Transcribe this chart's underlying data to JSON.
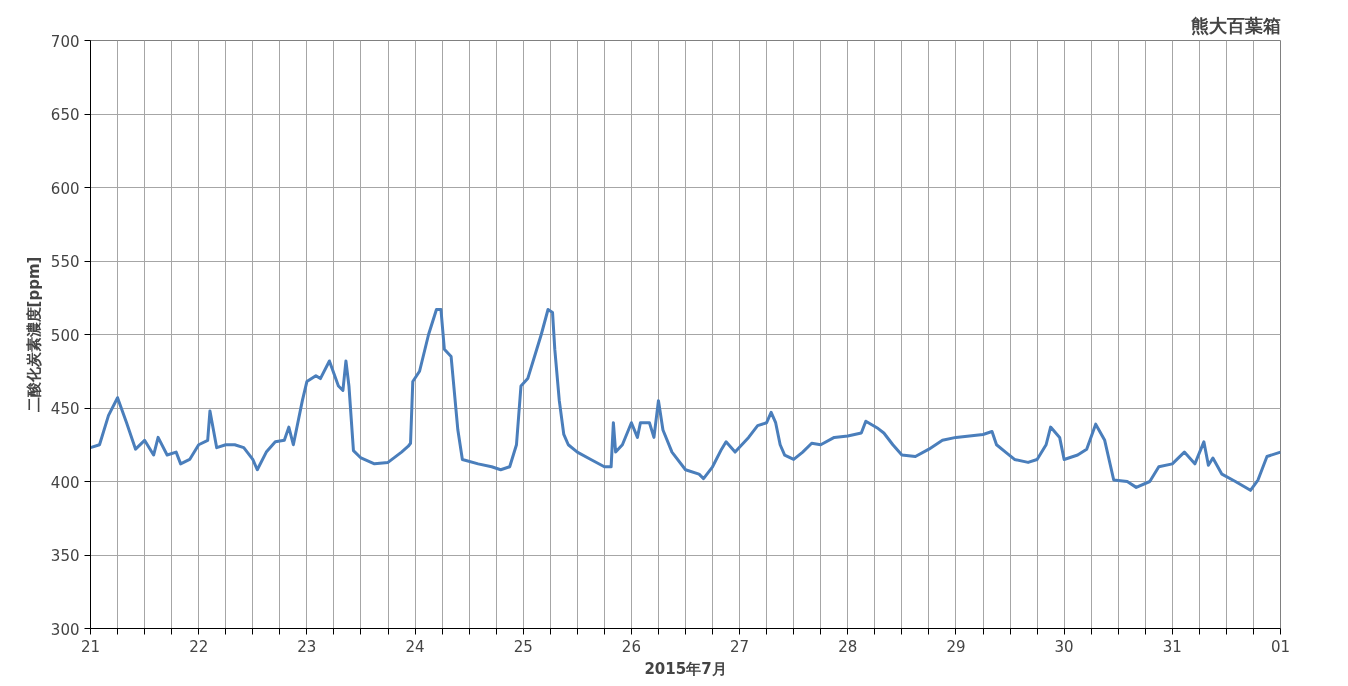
{
  "chart_data": {
    "type": "line",
    "title": "熊大百葉箱",
    "xlabel": "2015年7月",
    "ylabel": "二酸化炭素濃度[ppm]",
    "series": [
      {
        "color": "#4a7ebb",
        "x": [
          "2015-07-21T00:00",
          "2015-07-21T02:00",
          "2015-07-21T04:00",
          "2015-07-21T06:00",
          "2015-07-21T08:00",
          "2015-07-21T10:00",
          "2015-07-21T12:00",
          "2015-07-21T14:00",
          "2015-07-21T15:00",
          "2015-07-21T17:00",
          "2015-07-21T19:00",
          "2015-07-21T20:00",
          "2015-07-21T22:00",
          "2015-07-22T00:00",
          "2015-07-22T02:00",
          "2015-07-22T02:30",
          "2015-07-22T04:00",
          "2015-07-22T06:00",
          "2015-07-22T08:00",
          "2015-07-22T10:00",
          "2015-07-22T12:00",
          "2015-07-22T13:00",
          "2015-07-22T15:00",
          "2015-07-22T17:00",
          "2015-07-22T19:00",
          "2015-07-22T20:00",
          "2015-07-22T21:00",
          "2015-07-22T23:00",
          "2015-07-23T00:00",
          "2015-07-23T02:00",
          "2015-07-23T03:00",
          "2015-07-23T05:00",
          "2015-07-23T07:00",
          "2015-07-23T08:00",
          "2015-07-23T08:40",
          "2015-07-23T09:20",
          "2015-07-23T10:20",
          "2015-07-23T12:00",
          "2015-07-23T15:00",
          "2015-07-23T18:00",
          "2015-07-23T21:00",
          "2015-07-23T22:30",
          "2015-07-23T23:00",
          "2015-07-23T23:30",
          "2015-07-24T01:00",
          "2015-07-24T03:00",
          "2015-07-24T04:45",
          "2015-07-24T05:45",
          "2015-07-24T06:30",
          "2015-07-24T08:00",
          "2015-07-24T09:30",
          "2015-07-24T10:30",
          "2015-07-24T14:00",
          "2015-07-24T17:00",
          "2015-07-24T19:00",
          "2015-07-24T21:00",
          "2015-07-24T22:30",
          "2015-07-24T23:30",
          "2015-07-25T01:00",
          "2015-07-25T03:00",
          "2015-07-25T04:00",
          "2015-07-25T05:30",
          "2015-07-25T06:30",
          "2015-07-25T07:00",
          "2015-07-25T08:00",
          "2015-07-25T09:00",
          "2015-07-25T10:00",
          "2015-07-25T12:00",
          "2015-07-25T15:00",
          "2015-07-25T18:00",
          "2015-07-25T19:30",
          "2015-07-25T20:00",
          "2015-07-25T20:30",
          "2015-07-25T22:00",
          "2015-07-26T00:00",
          "2015-07-26T01:20",
          "2015-07-26T02:00",
          "2015-07-26T04:00",
          "2015-07-26T05:00",
          "2015-07-26T06:00",
          "2015-07-26T07:00",
          "2015-07-26T09:00",
          "2015-07-26T12:00",
          "2015-07-26T15:00",
          "2015-07-26T16:00",
          "2015-07-26T18:00",
          "2015-07-26T20:00",
          "2015-07-26T21:00",
          "2015-07-26T23:00",
          "2015-07-27T02:00",
          "2015-07-27T04:00",
          "2015-07-27T06:00",
          "2015-07-27T07:00",
          "2015-07-27T08:00",
          "2015-07-27T09:00",
          "2015-07-27T10:00",
          "2015-07-27T12:00",
          "2015-07-27T14:00",
          "2015-07-27T16:00",
          "2015-07-27T18:00",
          "2015-07-27T21:00",
          "2015-07-28T00:00",
          "2015-07-28T03:00",
          "2015-07-28T04:00",
          "2015-07-28T06:45",
          "2015-07-28T08:00",
          "2015-07-28T10:00",
          "2015-07-28T12:00",
          "2015-07-28T15:00",
          "2015-07-28T18:00",
          "2015-07-28T21:00",
          "2015-07-29T00:00",
          "2015-07-29T03:00",
          "2015-07-29T06:00",
          "2015-07-29T08:00",
          "2015-07-29T09:00",
          "2015-07-29T11:00",
          "2015-07-29T13:00",
          "2015-07-29T16:00",
          "2015-07-29T18:00",
          "2015-07-29T20:00",
          "2015-07-29T21:00",
          "2015-07-29T23:00",
          "2015-07-30T00:00",
          "2015-07-30T03:00",
          "2015-07-30T05:00",
          "2015-07-30T07:00",
          "2015-07-30T09:00",
          "2015-07-30T11:00",
          "2015-07-30T14:00",
          "2015-07-30T16:00",
          "2015-07-30T19:00",
          "2015-07-30T21:00",
          "2015-07-31T00:00",
          "2015-07-31T02:40",
          "2015-07-31T05:00",
          "2015-07-31T07:00",
          "2015-07-31T08:00",
          "2015-07-31T09:00",
          "2015-07-31T11:00",
          "2015-07-31T14:00",
          "2015-07-31T17:20",
          "2015-07-31T19:00",
          "2015-07-31T21:00",
          "2015-08-01T00:00"
        ],
        "values": [
          423,
          425,
          445,
          457,
          440,
          422,
          428,
          418,
          430,
          418,
          420,
          412,
          415,
          425,
          428,
          448,
          423,
          425,
          425,
          423,
          415,
          408,
          420,
          427,
          428,
          437,
          425,
          455,
          468,
          472,
          470,
          482,
          465,
          462,
          482,
          465,
          421,
          416,
          412,
          413,
          420,
          424,
          426,
          468,
          475,
          500,
          517,
          517,
          490,
          485,
          435,
          415,
          412,
          410,
          408,
          410,
          425,
          465,
          470,
          490,
          500,
          517,
          515,
          490,
          455,
          432,
          425,
          420,
          415,
          410,
          410,
          440,
          420,
          425,
          440,
          430,
          440,
          440,
          430,
          455,
          435,
          420,
          408,
          405,
          402,
          410,
          422,
          427,
          420,
          430,
          438,
          440,
          447,
          440,
          425,
          418,
          415,
          420,
          426,
          425,
          430,
          431,
          433,
          441,
          436,
          433,
          425,
          418,
          417,
          422,
          428,
          430,
          431,
          432,
          434,
          425,
          420,
          415,
          413,
          415,
          425,
          437,
          430,
          415,
          418,
          422,
          439,
          428,
          401,
          400,
          396,
          400,
          410,
          412,
          420,
          412,
          427,
          411,
          416,
          405,
          400,
          394,
          401,
          417,
          420
        ]
      }
    ],
    "xlim": [
      "2015-07-21",
      "2015-08-01"
    ],
    "xticks": [
      {
        "value": "2015-07-21",
        "label": "21"
      },
      {
        "value": "2015-07-21T06:00",
        "label": null
      },
      {
        "value": "2015-07-21T12:00",
        "label": null
      },
      {
        "value": "2015-07-21T18:00",
        "label": null
      },
      {
        "value": "2015-07-22",
        "label": "22"
      },
      {
        "value": "2015-07-22T06:00",
        "label": null
      },
      {
        "value": "2015-07-22T12:00",
        "label": null
      },
      {
        "value": "2015-07-22T18:00",
        "label": null
      },
      {
        "value": "2015-07-23",
        "label": "23"
      },
      {
        "value": "2015-07-23T06:00",
        "label": null
      },
      {
        "value": "2015-07-23T12:00",
        "label": null
      },
      {
        "value": "2015-07-23T18:00",
        "label": null
      },
      {
        "value": "2015-07-24",
        "label": "24"
      },
      {
        "value": "2015-07-24T06:00",
        "label": null
      },
      {
        "value": "2015-07-24T12:00",
        "label": null
      },
      {
        "value": "2015-07-24T18:00",
        "label": null
      },
      {
        "value": "2015-07-25",
        "label": "25"
      },
      {
        "value": "2015-07-25T06:00",
        "label": null
      },
      {
        "value": "2015-07-25T12:00",
        "label": null
      },
      {
        "value": "2015-07-25T18:00",
        "label": null
      },
      {
        "value": "2015-07-26",
        "label": "26"
      },
      {
        "value": "2015-07-26T06:00",
        "label": null
      },
      {
        "value": "2015-07-26T12:00",
        "label": null
      },
      {
        "value": "2015-07-26T18:00",
        "label": null
      },
      {
        "value": "2015-07-27",
        "label": "27"
      },
      {
        "value": "2015-07-27T06:00",
        "label": null
      },
      {
        "value": "2015-07-27T12:00",
        "label": null
      },
      {
        "value": "2015-07-27T18:00",
        "label": null
      },
      {
        "value": "2015-07-28",
        "label": "28"
      },
      {
        "value": "2015-07-28T06:00",
        "label": null
      },
      {
        "value": "2015-07-28T12:00",
        "label": null
      },
      {
        "value": "2015-07-28T18:00",
        "label": null
      },
      {
        "value": "2015-07-29",
        "label": "29"
      },
      {
        "value": "2015-07-29T06:00",
        "label": null
      },
      {
        "value": "2015-07-29T12:00",
        "label": null
      },
      {
        "value": "2015-07-29T18:00",
        "label": null
      },
      {
        "value": "2015-07-30",
        "label": "30"
      },
      {
        "value": "2015-07-30T06:00",
        "label": null
      },
      {
        "value": "2015-07-30T12:00",
        "label": null
      },
      {
        "value": "2015-07-30T18:00",
        "label": null
      },
      {
        "value": "2015-07-31",
        "label": "31"
      },
      {
        "value": "2015-07-31T06:00",
        "label": null
      },
      {
        "value": "2015-07-31T12:00",
        "label": null
      },
      {
        "value": "2015-07-31T18:00",
        "label": null
      },
      {
        "value": "2015-08-01",
        "label": "01"
      }
    ],
    "ylim": [
      300,
      700
    ],
    "yticks": [
      300,
      350,
      400,
      450,
      500,
      550,
      600,
      650,
      700
    ],
    "grid": true,
    "line_style": "solid"
  }
}
